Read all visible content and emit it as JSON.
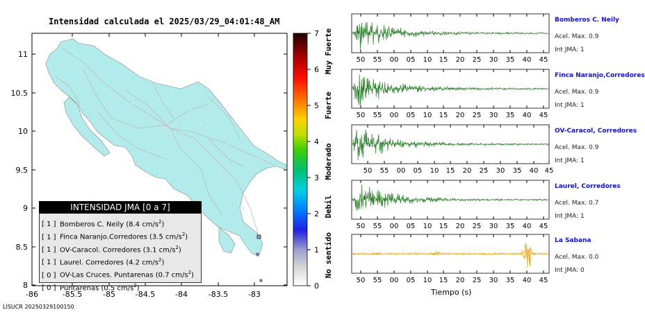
{
  "map_title": "Intensidad calculada el 2025/03/29_04:01:48_AM",
  "footer": "LISUCR 20250329100150",
  "map": {
    "x_ticks": [
      "-86",
      "-85.5",
      "-85",
      "-84.5",
      "-84",
      "-83.5",
      "-83"
    ],
    "y_ticks": [
      "11",
      "10.5",
      "10",
      "9.5",
      "9",
      "8.5",
      "8"
    ],
    "land_color": "#b2ebeb",
    "road_color": "#bbbbbb"
  },
  "colorbar": {
    "ticks": [
      "7",
      "6",
      "5",
      "4",
      "3",
      "2",
      "1",
      "0"
    ],
    "labels": [
      "Muy Fuerte",
      "Fuerte",
      "Moderado",
      "Debil",
      "No sentido"
    ]
  },
  "legend": {
    "title": "INTENSIDAD JMA [0 a 7]",
    "rows": [
      {
        "level": "[ 1 ]",
        "text": "Bomberos C. Neily (8.4 cm/s",
        "sup": "2",
        "end": ")"
      },
      {
        "level": "[ 1 ]",
        "text": "Finca Naranjo.Corredores (3.5 cm/s",
        "sup": "2",
        "end": ")"
      },
      {
        "level": "[ 1 ]",
        "text": "OV-Caracol. Corredores (3.1 cm/s",
        "sup": "2",
        "end": ")"
      },
      {
        "level": "[ 1 ]",
        "text": "Laurel. Corredores (4.2 cm/s",
        "sup": "2",
        "end": ")"
      },
      {
        "level": "[ 0 ]",
        "text": "OV-Las Cruces. Puntarenas (0.7 cm/s",
        "sup": "2",
        "end": ")"
      },
      {
        "level": "[ 0 ]",
        "text": "Puntarenas (0.5 cm/s",
        "sup": "2",
        "end": ")"
      }
    ]
  },
  "stations": [
    {
      "name": "Bomberos C. Neily",
      "acel": "Acel. Max. 0.9",
      "jma": "Int JMA: 1",
      "color": "#1f7a1f",
      "amp": 0.9
    },
    {
      "name": "Finca Naranjo,Corredores",
      "acel": "Acel. Max. 0.9",
      "jma": "Int JMA: 1",
      "color": "#1f7a1f",
      "amp": 0.9
    },
    {
      "name": "OV-Caracol, Corredores",
      "acel": "Acel. Max. 0.9",
      "jma": "Int JMA: 1",
      "color": "#1f7a1f",
      "amp": 0.9
    },
    {
      "name": "Laurel, Corredores",
      "acel": "Acel. Max. 0.7",
      "jma": "Int JMA: 1",
      "color": "#1f7a1f",
      "amp": 0.7
    },
    {
      "name": "La Sabana",
      "acel": "Acel. Max. 0.0",
      "jma": "Int JMA: 0",
      "color": "#f0a000",
      "amp": 0.0
    }
  ],
  "chart_data": {
    "type": "line",
    "xlabel": "Tiempo (s)",
    "time_ticks": [
      "50",
      "55",
      "00",
      "05",
      "10",
      "15",
      "20",
      "25",
      "30",
      "35",
      "40",
      "45"
    ],
    "series": [
      {
        "name": "Bomberos C. Neily",
        "peak_accel": 0.9,
        "jma_intensity": 1
      },
      {
        "name": "Finca Naranjo,Corredores",
        "peak_accel": 0.9,
        "jma_intensity": 1
      },
      {
        "name": "OV-Caracol, Corredores",
        "peak_accel": 0.9,
        "jma_intensity": 1
      },
      {
        "name": "Laurel, Corredores",
        "peak_accel": 0.7,
        "jma_intensity": 1
      },
      {
        "name": "La Sabana",
        "peak_accel": 0.0,
        "jma_intensity": 0
      }
    ]
  }
}
